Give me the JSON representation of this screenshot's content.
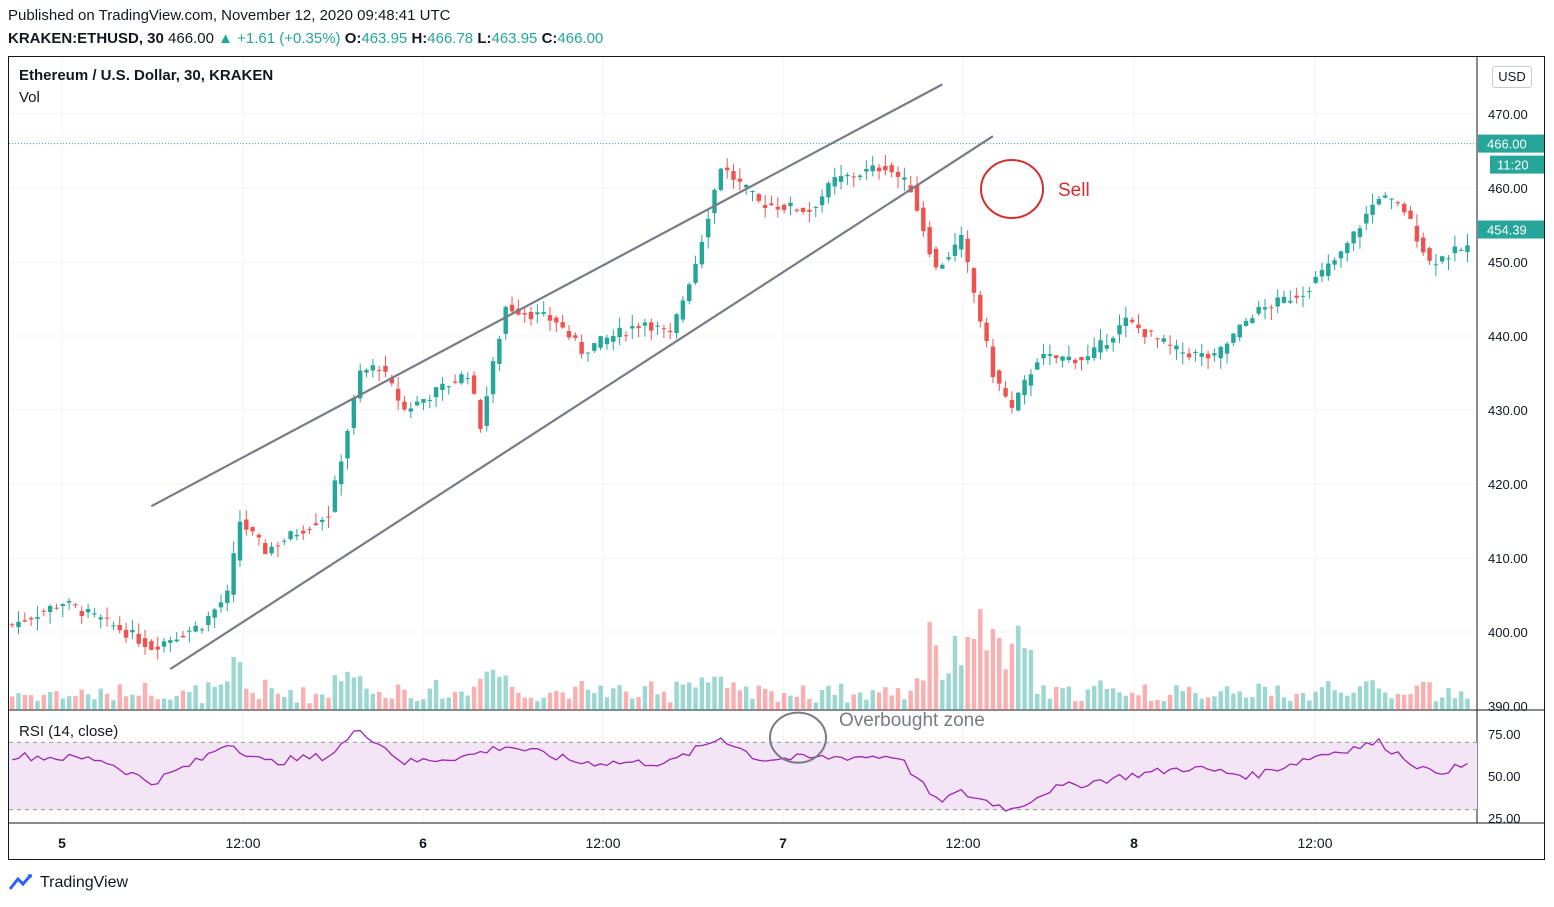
{
  "header": {
    "published": "Published on TradingView.com, November 12, 2020 09:48:41 UTC",
    "symbol": "KRAKEN:ETHUSD, 30",
    "last": "466.00",
    "change": "+1.61 (+0.35%)",
    "o_label": "O:",
    "o_val": "463.95",
    "h_label": "H:",
    "h_val": "466.78",
    "l_label": "L:",
    "l_val": "463.95",
    "c_label": "C:",
    "c_val": "466.00"
  },
  "legend": {
    "title": "Ethereum / U.S. Dollar, 30, KRAKEN",
    "vol": "Vol",
    "rsi": "RSI (14, close)"
  },
  "currency_button": "USD",
  "footer": "TradingView",
  "colors": {
    "up": "#26a69a",
    "down": "#ef5350",
    "rsi_line": "#9c27b0",
    "rsi_band": "#f3e5f5",
    "annot": "#d32f2f"
  },
  "chart_data": {
    "type": "candlestick",
    "y_axis": {
      "ticks": [
        470,
        460,
        450,
        440,
        430,
        420,
        410,
        400,
        390
      ],
      "labels": [
        "470.00",
        "460.00",
        "450.00",
        "440.00",
        "430.00",
        "420.00",
        "410.00",
        "400.00",
        "390.00"
      ]
    },
    "rsi_axis": {
      "ticks": [
        75,
        50,
        25
      ],
      "labels": [
        "75.00",
        "50.00",
        "25.00"
      ],
      "band": [
        30,
        70
      ]
    },
    "x_axis": {
      "labels": [
        "5",
        "12:00",
        "6",
        "12:00",
        "7",
        "12:00",
        "8",
        "12:00"
      ],
      "bold": [
        true,
        false,
        true,
        false,
        true,
        false,
        true,
        false
      ]
    },
    "price_badges": [
      {
        "label": "466.00",
        "value": 466.0,
        "sub": "11:20"
      },
      {
        "label": "454.39",
        "value": 454.39
      }
    ],
    "anchors": [
      {
        "i": 0,
        "p": 401
      },
      {
        "i": 8,
        "p": 404
      },
      {
        "i": 18,
        "p": 400
      },
      {
        "i": 22,
        "p": 398
      },
      {
        "i": 30,
        "p": 401
      },
      {
        "i": 34,
        "p": 405
      },
      {
        "i": 36,
        "p": 415
      },
      {
        "i": 40,
        "p": 411
      },
      {
        "i": 50,
        "p": 416
      },
      {
        "i": 55,
        "p": 435
      },
      {
        "i": 58,
        "p": 436
      },
      {
        "i": 62,
        "p": 430
      },
      {
        "i": 72,
        "p": 435
      },
      {
        "i": 74,
        "p": 428
      },
      {
        "i": 78,
        "p": 444
      },
      {
        "i": 86,
        "p": 442
      },
      {
        "i": 90,
        "p": 438
      },
      {
        "i": 100,
        "p": 442
      },
      {
        "i": 104,
        "p": 440
      },
      {
        "i": 108,
        "p": 450
      },
      {
        "i": 112,
        "p": 463
      },
      {
        "i": 118,
        "p": 458
      },
      {
        "i": 126,
        "p": 457
      },
      {
        "i": 130,
        "p": 461
      },
      {
        "i": 138,
        "p": 463
      },
      {
        "i": 142,
        "p": 460
      },
      {
        "i": 146,
        "p": 449
      },
      {
        "i": 150,
        "p": 453
      },
      {
        "i": 155,
        "p": 435
      },
      {
        "i": 158,
        "p": 430
      },
      {
        "i": 162,
        "p": 437
      },
      {
        "i": 170,
        "p": 437
      },
      {
        "i": 176,
        "p": 442
      },
      {
        "i": 184,
        "p": 438
      },
      {
        "i": 190,
        "p": 437
      },
      {
        "i": 196,
        "p": 443
      },
      {
        "i": 204,
        "p": 446
      },
      {
        "i": 210,
        "p": 451
      },
      {
        "i": 216,
        "p": 459
      },
      {
        "i": 220,
        "p": 457
      },
      {
        "i": 224,
        "p": 450
      },
      {
        "i": 230,
        "p": 452
      }
    ],
    "rsi_anchors": [
      {
        "i": 0,
        "v": 62
      },
      {
        "i": 14,
        "v": 60
      },
      {
        "i": 22,
        "v": 46
      },
      {
        "i": 30,
        "v": 60
      },
      {
        "i": 34,
        "v": 70
      },
      {
        "i": 40,
        "v": 58
      },
      {
        "i": 50,
        "v": 62
      },
      {
        "i": 55,
        "v": 78
      },
      {
        "i": 62,
        "v": 58
      },
      {
        "i": 72,
        "v": 62
      },
      {
        "i": 78,
        "v": 68
      },
      {
        "i": 90,
        "v": 58
      },
      {
        "i": 104,
        "v": 58
      },
      {
        "i": 112,
        "v": 73
      },
      {
        "i": 118,
        "v": 60
      },
      {
        "i": 140,
        "v": 62
      },
      {
        "i": 146,
        "v": 35
      },
      {
        "i": 150,
        "v": 40
      },
      {
        "i": 158,
        "v": 30
      },
      {
        "i": 164,
        "v": 42
      },
      {
        "i": 176,
        "v": 50
      },
      {
        "i": 186,
        "v": 55
      },
      {
        "i": 196,
        "v": 50
      },
      {
        "i": 206,
        "v": 62
      },
      {
        "i": 216,
        "v": 70
      },
      {
        "i": 224,
        "v": 52
      },
      {
        "i": 230,
        "v": 56
      }
    ],
    "channel_lines": [
      {
        "name": "channel-upper-line",
        "from": {
          "i": 22,
          "p": 417
        },
        "to": {
          "i": 147,
          "p": 474
        }
      },
      {
        "name": "channel-lower-line",
        "from": {
          "i": 25,
          "p": 395
        },
        "to": {
          "i": 155,
          "p": 467
        }
      }
    ],
    "annotations": [
      {
        "name": "sell-annotation",
        "text": "Sell",
        "i": 151,
        "p": 460
      },
      {
        "name": "overbought-annotation",
        "text": "Overbought zone",
        "i": 116,
        "rsi": 74
      }
    ]
  }
}
